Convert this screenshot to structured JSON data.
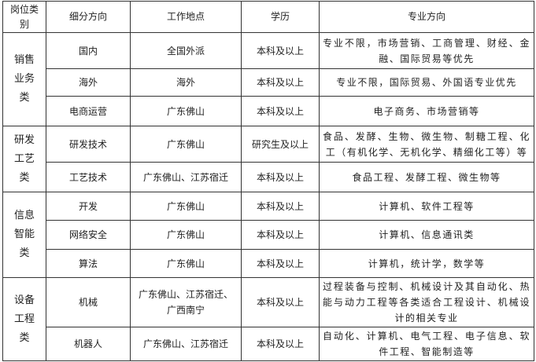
{
  "headers": [
    "岗位类别",
    "细分方向",
    "工作地点",
    "学历",
    "专业方向"
  ],
  "groups": [
    {
      "category": "销售业务类",
      "rows": [
        {
          "direction": "国内",
          "location": "全国外派",
          "education": "本科及以上",
          "major": "专业不限，市场营销、工商管理、财经、金融、国际贸易等优先"
        },
        {
          "direction": "海外",
          "location": "海外",
          "education": "本科及以上",
          "major": "专业不限，国际贸易、外国语专业优先"
        },
        {
          "direction": "电商运营",
          "location": "广东佛山",
          "education": "本科及以上",
          "major": "电子商务、市场营销等"
        }
      ]
    },
    {
      "category": "研发工艺类",
      "rows": [
        {
          "direction": "研发技术",
          "location": "广东佛山",
          "education": "研究生及以上",
          "major": "食品、发酵、生物、微生物、制糖工程、化工（有机化学、无机化学、精细化工等）等"
        },
        {
          "direction": "工艺技术",
          "location": "广东佛山、江苏宿迁",
          "education": "本科及以上",
          "major": "食品工程、发酵工程、微生物等"
        }
      ]
    },
    {
      "category": "信息智能类",
      "rows": [
        {
          "direction": "开发",
          "location": "广东佛山",
          "education": "本科及以上",
          "major": "计算机、软件工程等"
        },
        {
          "direction": "网络安全",
          "location": "广东佛山",
          "education": "本科及以上",
          "major": "计算机、信息通讯类"
        },
        {
          "direction": "算法",
          "location": "广东佛山",
          "education": "本科及以上",
          "major": "计算机，统计学，数学等"
        }
      ]
    },
    {
      "category": "设备工程类",
      "rows": [
        {
          "direction": "机械",
          "location": "广东佛山、江苏宿迁、广西南宁",
          "education": "本科及以上",
          "major": "过程装备与控制、机械设计及其自动化、热能与动力工程等各类适合工程设计、机械设计的相关专业"
        },
        {
          "direction": "机器人",
          "location": "广东佛山、江苏宿迁",
          "education": "本科及以上",
          "major": "自动化、计算机、电气工程、电子信息、软件工程、智能制造等"
        }
      ]
    }
  ]
}
